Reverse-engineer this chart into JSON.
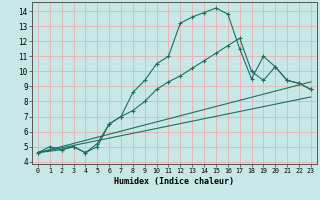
{
  "xlabel": "Humidex (Indice chaleur)",
  "bg_color": "#c8e8e8",
  "grid_color": "#e8b0b0",
  "line_color": "#1a6e60",
  "xlim": [
    -0.5,
    23.5
  ],
  "ylim": [
    3.85,
    14.6
  ],
  "xticks": [
    0,
    1,
    2,
    3,
    4,
    5,
    6,
    7,
    8,
    9,
    10,
    11,
    12,
    13,
    14,
    15,
    16,
    17,
    18,
    19,
    20,
    21,
    22,
    23
  ],
  "yticks": [
    4,
    5,
    6,
    7,
    8,
    9,
    10,
    11,
    12,
    13,
    14
  ],
  "curve1_x": [
    0,
    1,
    2,
    3,
    4,
    5,
    6,
    7,
    8,
    9,
    10,
    11,
    12,
    13,
    14,
    15,
    16,
    17,
    18,
    19,
    20,
    21,
    22,
    23
  ],
  "curve1_y": [
    4.6,
    5.0,
    4.8,
    5.0,
    4.6,
    5.0,
    6.5,
    7.0,
    8.6,
    9.4,
    10.5,
    11.0,
    13.2,
    13.6,
    13.9,
    14.2,
    13.8,
    11.5,
    9.5,
    11.0,
    10.3,
    9.4,
    9.2,
    8.8
  ],
  "curve2_x": [
    0,
    2,
    3,
    4,
    5,
    6,
    7,
    8,
    9,
    10,
    11,
    12,
    13,
    14,
    15,
    16,
    17,
    18,
    19,
    20,
    21,
    22,
    23
  ],
  "curve2_y": [
    4.6,
    4.8,
    5.0,
    4.6,
    5.2,
    6.5,
    7.0,
    7.4,
    8.0,
    8.8,
    9.3,
    9.7,
    10.2,
    10.7,
    11.2,
    11.7,
    12.2,
    10.0,
    9.4,
    10.3,
    9.4,
    9.2,
    8.8
  ],
  "line1_x": [
    0,
    23
  ],
  "line1_y": [
    4.6,
    9.3
  ],
  "line2_x": [
    0,
    23
  ],
  "line2_y": [
    4.6,
    8.3
  ]
}
